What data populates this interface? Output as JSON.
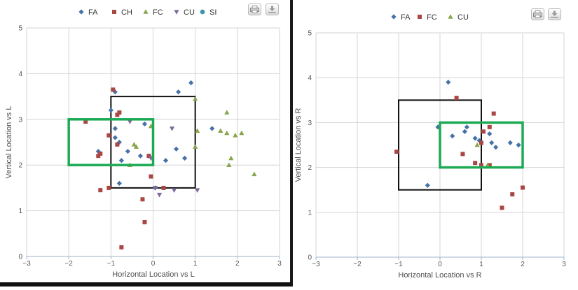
{
  "chart_data": [
    {
      "type": "scatter",
      "title": "",
      "xlabel": "Horizontal Location vs L",
      "ylabel": "Vertical Location vs L",
      "xlim": [
        -3,
        3
      ],
      "ylim": [
        0,
        5
      ],
      "xticks": [
        "−3",
        "−2",
        "−1",
        "0",
        "1",
        "2",
        "3"
      ],
      "yticks": [
        "0",
        "1",
        "2",
        "3",
        "4",
        "5"
      ],
      "grid": true,
      "legend_position": "top-center",
      "series": [
        {
          "name": "FA",
          "marker": "diamond",
          "color": "#4572A7",
          "points": [
            [
              -0.9,
              3.6
            ],
            [
              0.6,
              3.6
            ],
            [
              0.9,
              3.8
            ],
            [
              -1.0,
              3.2
            ],
            [
              -0.9,
              2.8
            ],
            [
              -0.2,
              2.9
            ],
            [
              -0.9,
              2.6
            ],
            [
              -0.8,
              2.5
            ],
            [
              -1.3,
              2.3
            ],
            [
              -0.3,
              2.2
            ],
            [
              -0.1,
              2.2
            ],
            [
              0.3,
              2.1
            ],
            [
              0.55,
              2.35
            ],
            [
              0.75,
              2.15
            ],
            [
              -0.75,
              2.1
            ],
            [
              -0.8,
              1.6
            ],
            [
              0.05,
              1.5
            ],
            [
              1.4,
              2.8
            ],
            [
              -0.6,
              2.3
            ]
          ]
        },
        {
          "name": "CH",
          "marker": "square",
          "color": "#AA4643",
          "points": [
            [
              -0.95,
              3.65
            ],
            [
              -0.8,
              3.15
            ],
            [
              -0.85,
              3.1
            ],
            [
              -1.6,
              2.95
            ],
            [
              -1.05,
              2.65
            ],
            [
              -0.85,
              2.45
            ],
            [
              -1.25,
              2.25
            ],
            [
              -1.3,
              2.2
            ],
            [
              -0.1,
              2.2
            ],
            [
              -0.05,
              1.75
            ],
            [
              -1.05,
              1.5
            ],
            [
              -1.25,
              1.45
            ],
            [
              0.25,
              1.5
            ],
            [
              -0.25,
              1.25
            ],
            [
              -0.2,
              0.75
            ],
            [
              -0.75,
              0.2
            ]
          ]
        },
        {
          "name": "FC",
          "marker": "triangle",
          "color": "#89A54E",
          "points": [
            [
              1.0,
              3.45
            ],
            [
              1.75,
              3.15
            ],
            [
              -0.05,
              2.85
            ],
            [
              1.05,
              2.75
            ],
            [
              1.6,
              2.75
            ],
            [
              1.75,
              2.7
            ],
            [
              1.95,
              2.65
            ],
            [
              2.1,
              2.7
            ],
            [
              -0.45,
              2.45
            ],
            [
              -0.4,
              2.4
            ],
            [
              1.0,
              2.4
            ],
            [
              -0.55,
              2.0
            ],
            [
              1.85,
              2.15
            ],
            [
              1.8,
              2.0
            ],
            [
              2.4,
              1.8
            ]
          ]
        },
        {
          "name": "CU",
          "marker": "triangle-down",
          "color": "#80699B",
          "points": [
            [
              -0.55,
              2.95
            ],
            [
              0.45,
              2.8
            ],
            [
              0.05,
              1.5
            ],
            [
              0.15,
              1.35
            ],
            [
              0.5,
              1.45
            ],
            [
              1.05,
              1.45
            ],
            [
              -0.05,
              2.15
            ]
          ]
        },
        {
          "name": "SI",
          "marker": "circle",
          "color": "#3D96AE",
          "points": []
        }
      ],
      "zone": {
        "x": [
          -1,
          1
        ],
        "y": [
          1.5,
          3.5
        ],
        "color": "#111111"
      },
      "highlight": {
        "x": [
          -2,
          0
        ],
        "y": [
          2,
          3
        ],
        "color": "#1DAA55"
      }
    },
    {
      "type": "scatter",
      "title": "",
      "xlabel": "Horizontal Location vs R",
      "ylabel": "Vertical Location vs R",
      "xlim": [
        -3,
        3
      ],
      "ylim": [
        0,
        5
      ],
      "xticks": [
        "−3",
        "−2",
        "−1",
        "0",
        "1",
        "2",
        "3"
      ],
      "yticks": [
        "0",
        "1",
        "2",
        "3",
        "4",
        "5"
      ],
      "grid": true,
      "legend_position": "top-center",
      "series": [
        {
          "name": "FA",
          "marker": "diamond",
          "color": "#4572A7",
          "points": [
            [
              0.2,
              3.9
            ],
            [
              -0.05,
              2.9
            ],
            [
              0.65,
              2.9
            ],
            [
              0.6,
              2.8
            ],
            [
              0.3,
              2.7
            ],
            [
              0.85,
              2.65
            ],
            [
              0.95,
              2.6
            ],
            [
              1.2,
              2.75
            ],
            [
              1.25,
              2.55
            ],
            [
              1.35,
              2.45
            ],
            [
              1.7,
              2.55
            ],
            [
              1.9,
              2.5
            ],
            [
              -0.3,
              1.6
            ]
          ]
        },
        {
          "name": "FC",
          "marker": "square",
          "color": "#AA4643",
          "points": [
            [
              0.4,
              3.55
            ],
            [
              1.3,
              3.2
            ],
            [
              1.2,
              2.9
            ],
            [
              1.05,
              2.8
            ],
            [
              1.0,
              2.55
            ],
            [
              -1.05,
              2.35
            ],
            [
              0.55,
              2.3
            ],
            [
              0.85,
              2.1
            ],
            [
              1.0,
              2.05
            ],
            [
              1.2,
              2.05
            ],
            [
              2.0,
              1.55
            ],
            [
              1.75,
              1.4
            ],
            [
              1.5,
              1.1
            ]
          ]
        },
        {
          "name": "CU",
          "marker": "triangle",
          "color": "#89A54E",
          "points": [
            [
              0.9,
              2.5
            ],
            [
              1.15,
              2.05
            ]
          ]
        }
      ],
      "zone": {
        "x": [
          -1,
          1
        ],
        "y": [
          1.5,
          3.5
        ],
        "color": "#111111"
      },
      "highlight": {
        "x": [
          0,
          2
        ],
        "y": [
          2,
          3
        ],
        "color": "#1DAA55"
      }
    }
  ],
  "toolbar": {
    "print_icon": "printer-icon",
    "export_icon": "download-icon"
  }
}
